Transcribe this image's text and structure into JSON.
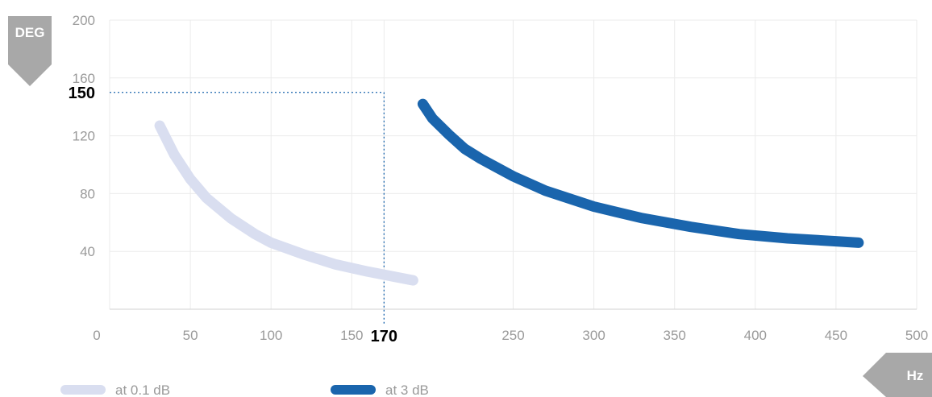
{
  "chart_data": {
    "type": "line",
    "x_ticks": [
      0,
      50,
      100,
      150,
      250,
      300,
      350,
      400,
      450,
      500
    ],
    "y_ticks": [
      40,
      80,
      120,
      160,
      200
    ],
    "xlim": [
      0,
      500
    ],
    "ylim": [
      0,
      200
    ],
    "x_unit": "Hz",
    "y_unit": "DEG",
    "grid": true,
    "legend_position": "bottom-left",
    "highlight": {
      "x": 170,
      "y": 150,
      "x_label": "170",
      "y_label": "150"
    },
    "series": [
      {
        "name": "at 0.1 dB",
        "color": "#d9def0",
        "x": [
          31,
          40,
          50,
          60,
          75,
          90,
          100,
          120,
          140,
          160,
          188
        ],
        "y": [
          127,
          107,
          90,
          77,
          63,
          52,
          46,
          38,
          31,
          26,
          20
        ]
      },
      {
        "name": "at 3 dB",
        "color": "#1a65ad",
        "x": [
          194,
          200,
          210,
          220,
          230,
          240,
          250,
          270,
          300,
          330,
          360,
          390,
          420,
          450,
          464
        ],
        "y": [
          142,
          132,
          121,
          111,
          104,
          98,
          92,
          82,
          71,
          63,
          57,
          52,
          49,
          47,
          46
        ]
      }
    ]
  }
}
